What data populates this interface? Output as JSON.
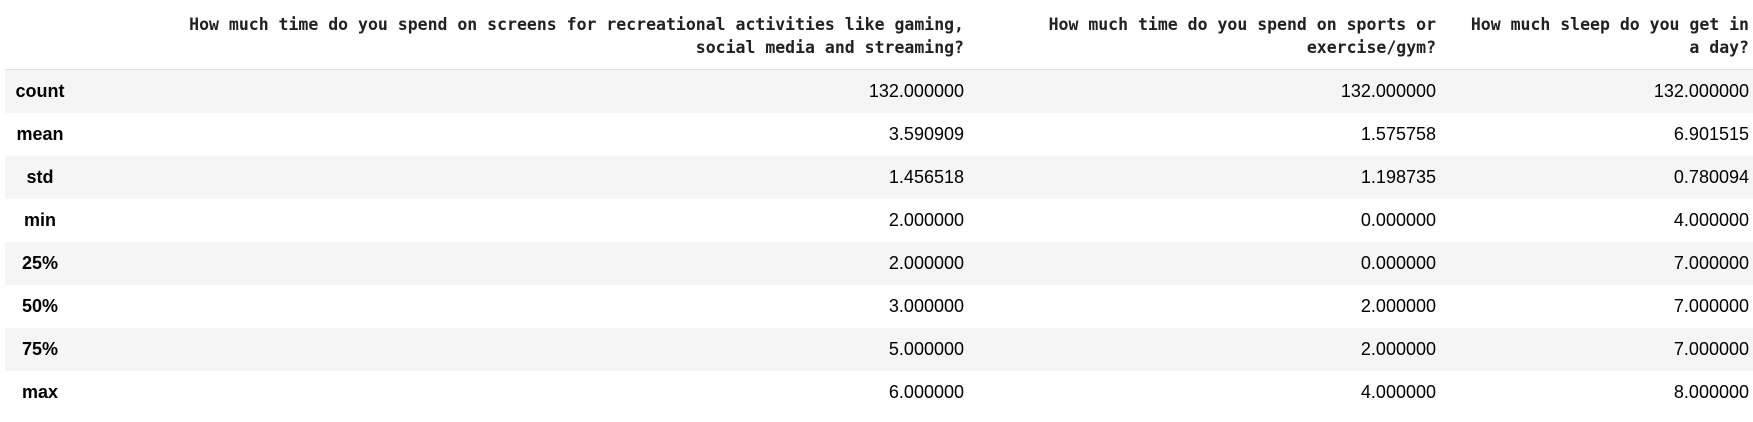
{
  "table": {
    "index_header": "",
    "columns": [
      "How much time do you spend on screens for recreational activities like gaming, social media and streaming?",
      "How much time do you spend on sports or exercise/gym?",
      "How much sleep do you get in a day?"
    ],
    "header_lines": [
      [
        "How much time do you spend on screens for recreational activities like gaming,",
        "social media and streaming?"
      ],
      [
        "How much time do you spend on sports or",
        "exercise/gym?"
      ],
      [
        "How much sleep do you get in",
        "a day?"
      ]
    ],
    "rows": [
      {
        "label": "count",
        "values": [
          "132.000000",
          "132.000000",
          "132.000000"
        ]
      },
      {
        "label": "mean",
        "values": [
          "3.590909",
          "1.575758",
          "6.901515"
        ]
      },
      {
        "label": "std",
        "values": [
          "1.456518",
          "1.198735",
          "0.780094"
        ]
      },
      {
        "label": "min",
        "values": [
          "2.000000",
          "0.000000",
          "4.000000"
        ]
      },
      {
        "label": "25%",
        "values": [
          "2.000000",
          "0.000000",
          "7.000000"
        ]
      },
      {
        "label": "50%",
        "values": [
          "3.000000",
          "2.000000",
          "7.000000"
        ]
      },
      {
        "label": "75%",
        "values": [
          "5.000000",
          "2.000000",
          "7.000000"
        ]
      },
      {
        "label": "max",
        "values": [
          "6.000000",
          "4.000000",
          "8.000000"
        ]
      }
    ]
  },
  "colors": {
    "stripe": "#f5f5f5",
    "header_rule": "#e0e0e0",
    "text": "#000000"
  }
}
